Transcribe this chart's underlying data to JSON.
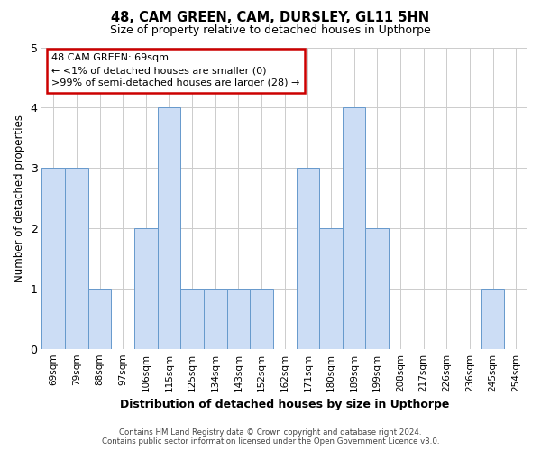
{
  "title1": "48, CAM GREEN, CAM, DURSLEY, GL11 5HN",
  "title2": "Size of property relative to detached houses in Upthorpe",
  "xlabel": "Distribution of detached houses by size in Upthorpe",
  "ylabel": "Number of detached properties",
  "categories": [
    "69sqm",
    "79sqm",
    "88sqm",
    "97sqm",
    "106sqm",
    "115sqm",
    "125sqm",
    "134sqm",
    "143sqm",
    "152sqm",
    "162sqm",
    "171sqm",
    "180sqm",
    "189sqm",
    "199sqm",
    "208sqm",
    "217sqm",
    "226sqm",
    "236sqm",
    "245sqm",
    "254sqm"
  ],
  "values": [
    3,
    3,
    1,
    0,
    2,
    4,
    1,
    1,
    1,
    1,
    0,
    3,
    2,
    4,
    2,
    0,
    0,
    0,
    0,
    1,
    0
  ],
  "bar_color": "#ccddf5",
  "bar_edge_color": "#6699cc",
  "ylim": [
    0,
    5
  ],
  "annotation_text": "48 CAM GREEN: 69sqm\n← <1% of detached houses are smaller (0)\n>99% of semi-detached houses are larger (28) →",
  "annotation_box_edge": "#cc0000",
  "footnote1": "Contains HM Land Registry data © Crown copyright and database right 2024.",
  "footnote2": "Contains public sector information licensed under the Open Government Licence v3.0.",
  "background_color": "#ffffff",
  "grid_color": "#cccccc"
}
